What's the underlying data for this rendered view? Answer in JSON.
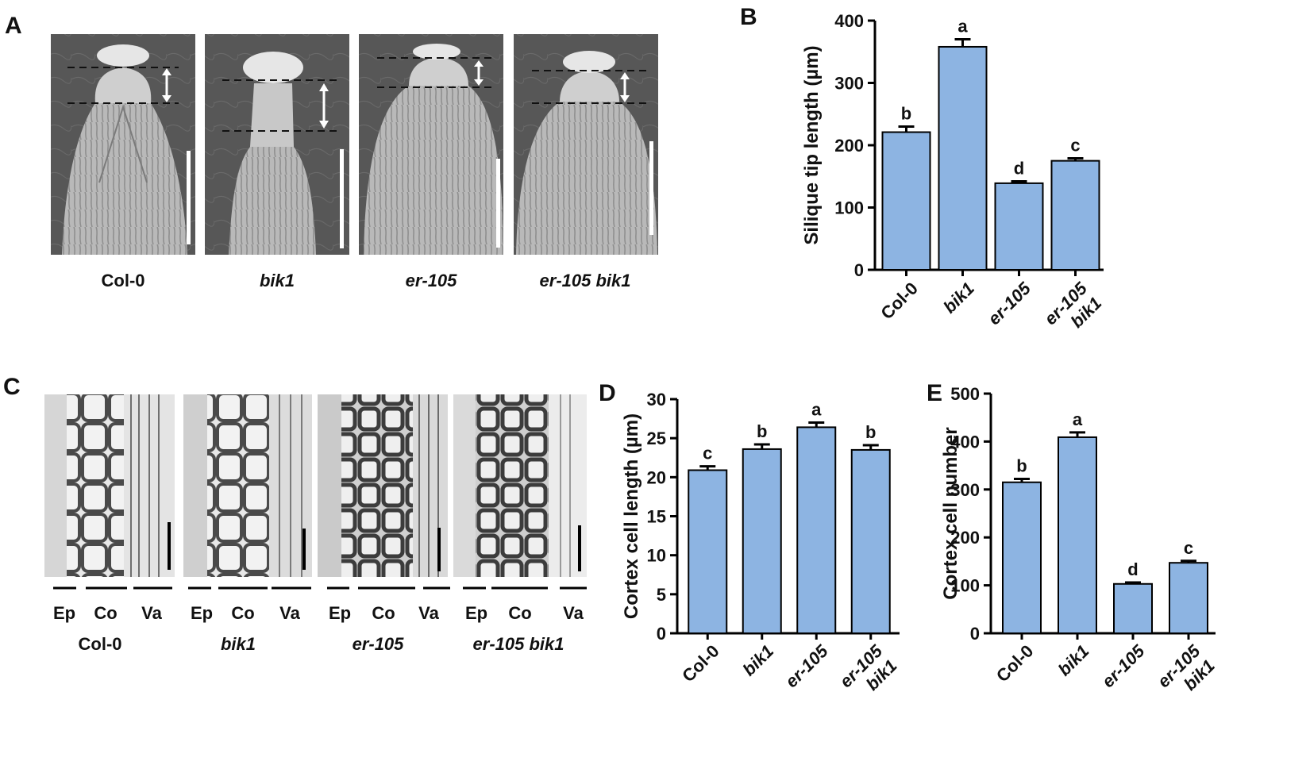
{
  "panels": {
    "a": {
      "label": "A",
      "captions": [
        "Col-0",
        "bik1",
        "er-105",
        "er-105 bik1"
      ]
    },
    "b": {
      "label": "B"
    },
    "c": {
      "label": "C",
      "tissues": [
        "Ep",
        "Co",
        "Va"
      ],
      "captions": [
        "Col-0",
        "bik1",
        "er-105",
        "er-105 bik1"
      ]
    },
    "d": {
      "label": "D"
    },
    "e": {
      "label": "E"
    }
  },
  "colors": {
    "bar_fill": "#8db4e2",
    "bar_stroke": "#000000",
    "axis": "#000000"
  },
  "chart_data": [
    {
      "id": "B",
      "type": "bar",
      "categories": [
        "Col-0",
        "bik1",
        "er-105",
        "er-105 bik1"
      ],
      "category_lines": [
        [
          "Col-0"
        ],
        [
          "bik1"
        ],
        [
          "er-105"
        ],
        [
          "er-105",
          "bik1"
        ]
      ],
      "values": [
        221,
        358,
        139,
        175
      ],
      "errors": [
        9,
        12,
        3,
        4
      ],
      "significance": [
        "b",
        "a",
        "d",
        "c"
      ],
      "ylabel": "Silique tip length (µm)",
      "ylim": [
        0,
        400
      ],
      "yticks": [
        0,
        100,
        200,
        300,
        400
      ]
    },
    {
      "id": "D",
      "type": "bar",
      "categories": [
        "Col-0",
        "bik1",
        "er-105",
        "er-105 bik1"
      ],
      "category_lines": [
        [
          "Col-0"
        ],
        [
          "bik1"
        ],
        [
          "er-105"
        ],
        [
          "er-105",
          "bik1"
        ]
      ],
      "values": [
        20.9,
        23.6,
        26.4,
        23.5
      ],
      "errors": [
        0.5,
        0.6,
        0.6,
        0.6
      ],
      "significance": [
        "c",
        "b",
        "a",
        "b"
      ],
      "ylabel": "Cortex cell length (µm)",
      "ylim": [
        0,
        30
      ],
      "yticks": [
        0,
        5,
        10,
        15,
        20,
        25,
        30
      ]
    },
    {
      "id": "E",
      "type": "bar",
      "categories": [
        "Col-0",
        "bik1",
        "er-105",
        "er-105 bik1"
      ],
      "category_lines": [
        [
          "Col-0"
        ],
        [
          "bik1"
        ],
        [
          "er-105"
        ],
        [
          "er-105",
          "bik1"
        ]
      ],
      "values": [
        315,
        409,
        103,
        147
      ],
      "errors": [
        7,
        10,
        3,
        4
      ],
      "significance": [
        "b",
        "a",
        "d",
        "c"
      ],
      "ylabel": "Cortex cell number",
      "ylim": [
        0,
        500
      ],
      "yticks": [
        0,
        100,
        200,
        300,
        400,
        500
      ]
    }
  ]
}
